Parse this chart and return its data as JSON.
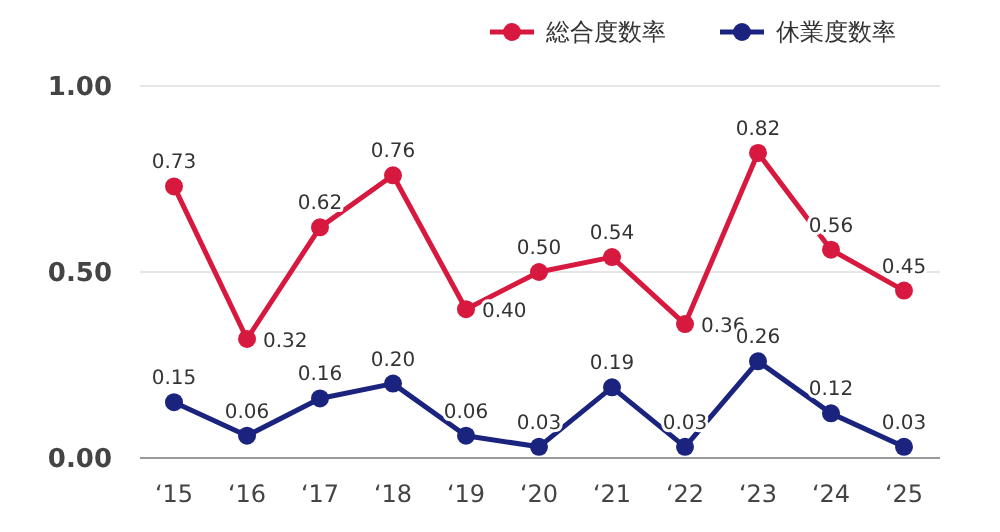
{
  "chart_data": {
    "type": "line",
    "categories": [
      "‘15",
      "‘16",
      "‘17",
      "‘18",
      "‘19",
      "‘20",
      "‘21",
      "‘22",
      "‘23",
      "‘24",
      "‘25"
    ],
    "series": [
      {
        "name": "総合度数率",
        "color": "#d7193f",
        "values": [
          0.73,
          0.32,
          0.62,
          0.76,
          0.4,
          0.5,
          0.54,
          0.36,
          0.82,
          0.56,
          0.45
        ],
        "value_labels": [
          "0.73",
          "0.32",
          "0.62",
          "0.76",
          "0.40",
          "0.50",
          "0.54",
          "0.36",
          "0.82",
          "0.56",
          "0.45"
        ]
      },
      {
        "name": "休業度数率",
        "color": "#1a237e",
        "values": [
          0.15,
          0.06,
          0.16,
          0.2,
          0.06,
          0.03,
          0.19,
          0.03,
          0.26,
          0.12,
          0.03
        ],
        "value_labels": [
          "0.15",
          "0.06",
          "0.16",
          "0.20",
          "0.06",
          "0.03",
          "0.19",
          "0.03",
          "0.26",
          "0.12",
          "0.03"
        ]
      }
    ],
    "ylim": [
      0,
      1
    ],
    "yticks": [
      {
        "value": 0,
        "label": "0.00"
      },
      {
        "value": 0.5,
        "label": "0.50"
      },
      {
        "value": 1,
        "label": "1.00"
      }
    ],
    "grid": "y",
    "legend": "top right",
    "marker": "circle",
    "line_style": "solid"
  }
}
